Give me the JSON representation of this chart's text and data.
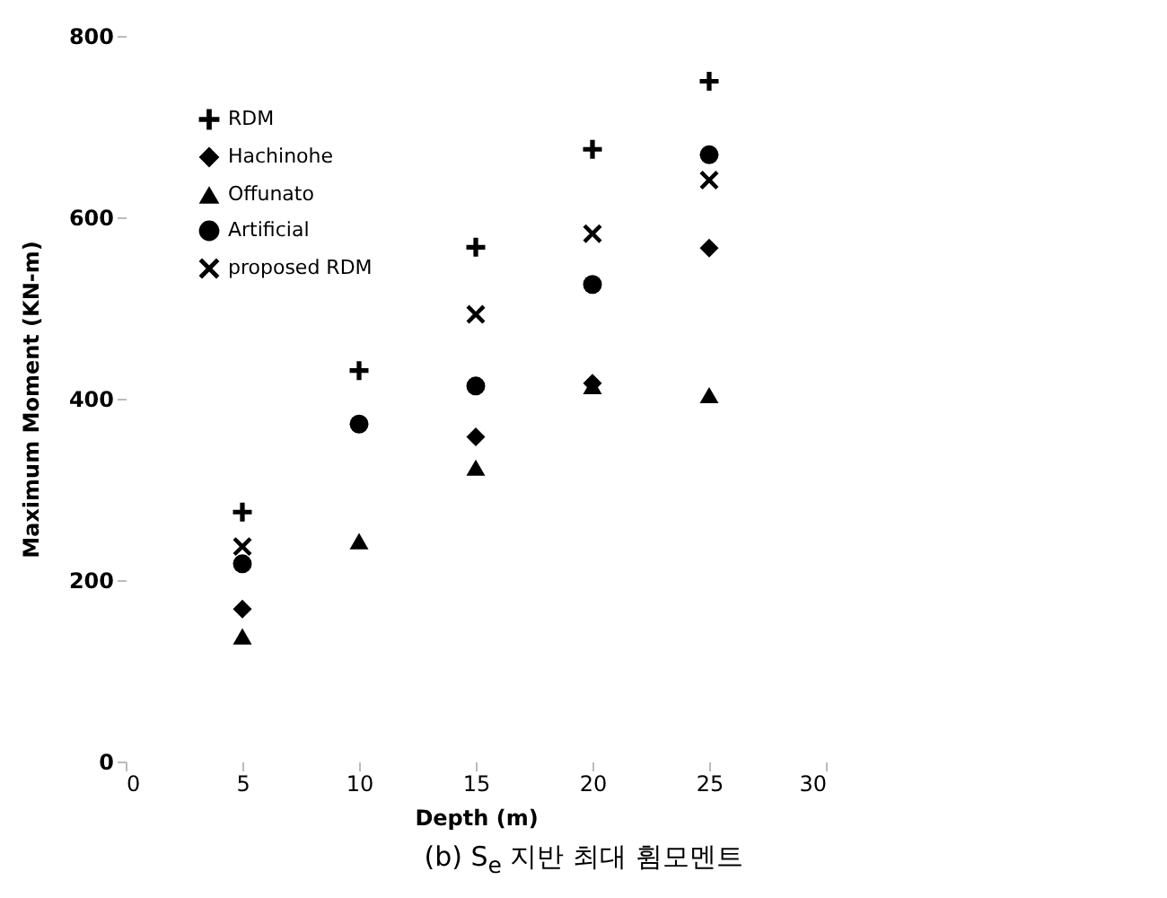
{
  "chart_data": {
    "type": "scatter",
    "xlabel": "Depth (m)",
    "ylabel": "Maximum Moment (KN-m)",
    "x": [
      5,
      10,
      15,
      20,
      25
    ],
    "series": [
      {
        "name": "RDM",
        "color": "#000000",
        "marker": "plus",
        "values": [
          275,
          431,
          567,
          675,
          750
        ]
      },
      {
        "name": "Hachinohe",
        "color": "#000000",
        "marker": "diamond",
        "values": [
          168,
          null,
          358,
          417,
          566
        ]
      },
      {
        "name": "Offunato",
        "color": "#000000",
        "marker": "triangle",
        "values": [
          138,
          243,
          324,
          414,
          404
        ]
      },
      {
        "name": "Artificial",
        "color": "#000000",
        "marker": "circle",
        "values": [
          218,
          372,
          414,
          526,
          669
        ]
      },
      {
        "name": "proposed RDM",
        "color": "#000000",
        "marker": "x",
        "values": [
          237,
          null,
          493,
          582,
          641
        ]
      }
    ],
    "xlim": [
      0,
      30
    ],
    "xticks": [
      0,
      5,
      10,
      15,
      20,
      25,
      30
    ],
    "ylim": [
      0,
      800
    ],
    "yticks": [
      0,
      200,
      400,
      600,
      800
    ],
    "grid": false,
    "legend": "top left",
    "annotations": [
      "(b) S$_{e}$ 지반 최대 휨모멘트"
    ]
  }
}
